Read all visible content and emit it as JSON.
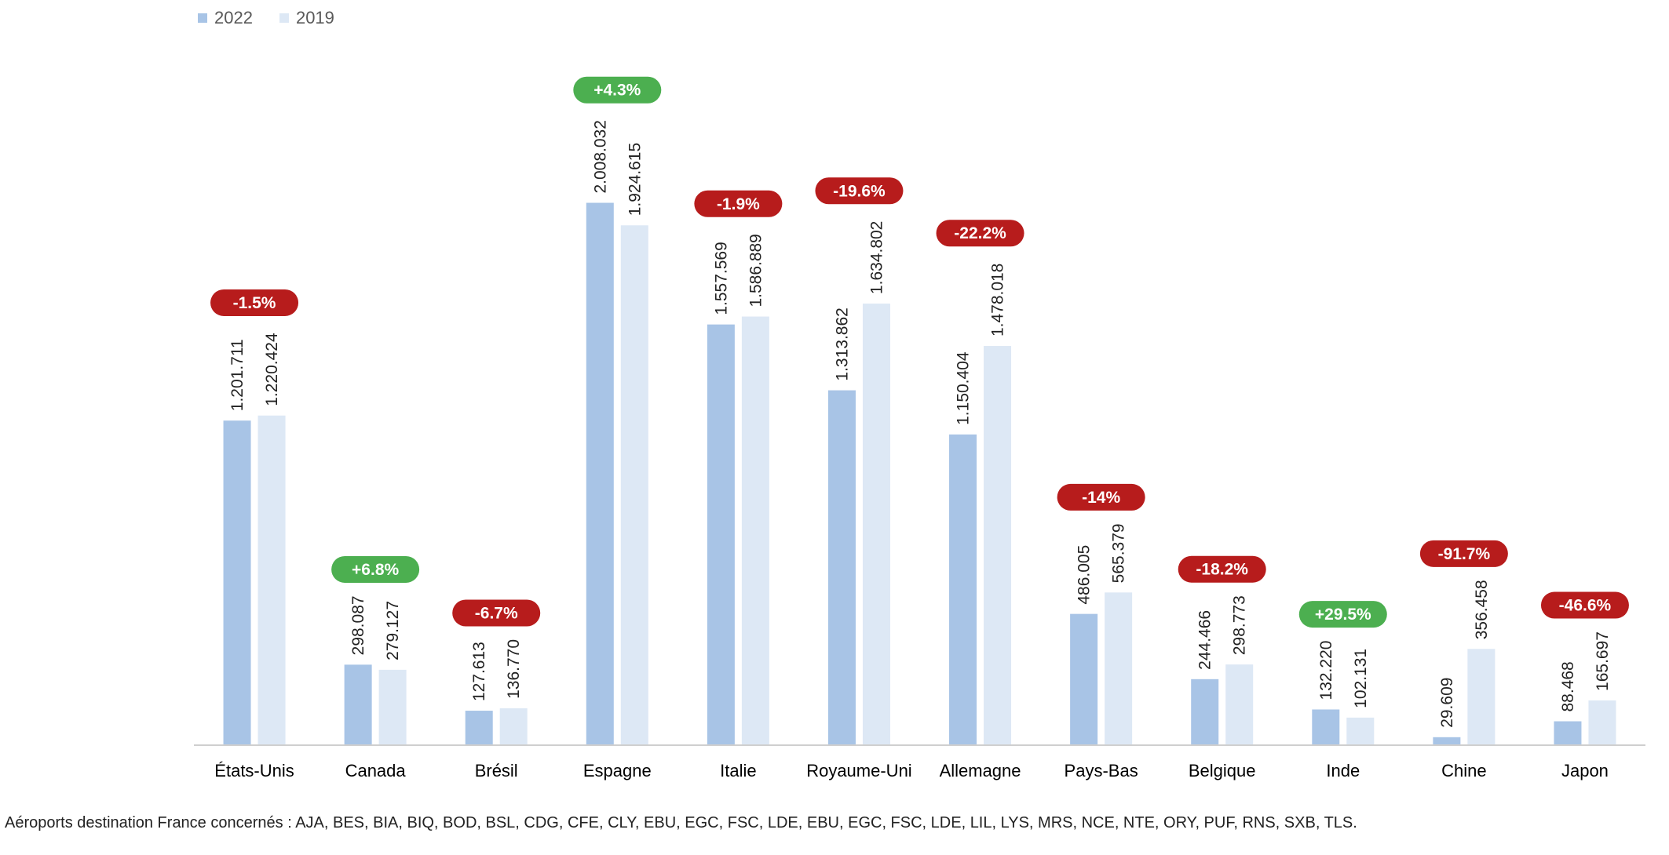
{
  "chart_data": {
    "type": "bar",
    "categories": [
      "États-Unis",
      "Canada",
      "Brésil",
      "Espagne",
      "Italie",
      "Royaume-Uni",
      "Allemagne",
      "Pays-Bas",
      "Belgique",
      "Inde",
      "Chine",
      "Japon"
    ],
    "series": [
      {
        "name": "2022",
        "color": "#a8c4e6",
        "values": [
          1201711,
          298087,
          127613,
          2008032,
          1557569,
          1313862,
          1150404,
          486005,
          244466,
          132220,
          29609,
          88468
        ],
        "labels": [
          "1.201.711",
          "298.087",
          "127.613",
          "2.008.032",
          "1.557.569",
          "1.313.862",
          "1.150.404",
          "486.005",
          "244.466",
          "132.220",
          "29.609",
          "88.468"
        ]
      },
      {
        "name": "2019",
        "color": "#dde8f5",
        "values": [
          1220424,
          279127,
          136770,
          1924615,
          1586889,
          1634802,
          1478018,
          565379,
          298773,
          102131,
          356458,
          165697
        ],
        "labels": [
          "1.220.424",
          "279.127",
          "136.770",
          "1.924.615",
          "1.586.889",
          "1.634.802",
          "1.478.018",
          "565.379",
          "298.773",
          "102.131",
          "356.458",
          "165.697"
        ]
      }
    ],
    "changes": [
      "-1.5%",
      "+6.8%",
      "-6.7%",
      "+4.3%",
      "-1.9%",
      "-19.6%",
      "-22.2%",
      "-14%",
      "-18.2%",
      "+29.5%",
      "-91.7%",
      "-46.6%"
    ],
    "change_colors": {
      "positive": "#4caf50",
      "negative": "#b71c1c"
    },
    "ylim": [
      0,
      2300000
    ],
    "grid": false,
    "legend": "top-left"
  },
  "footnote": "Aéroports destination France concernés : AJA, BES, BIA, BIQ, BOD, BSL, CDG, CFE, CLY, EBU, EGC, FSC, LDE, EBU, EGC, FSC, LDE, LIL, LYS, MRS, NCE, NTE, ORY, PUF, RNS, SXB, TLS."
}
